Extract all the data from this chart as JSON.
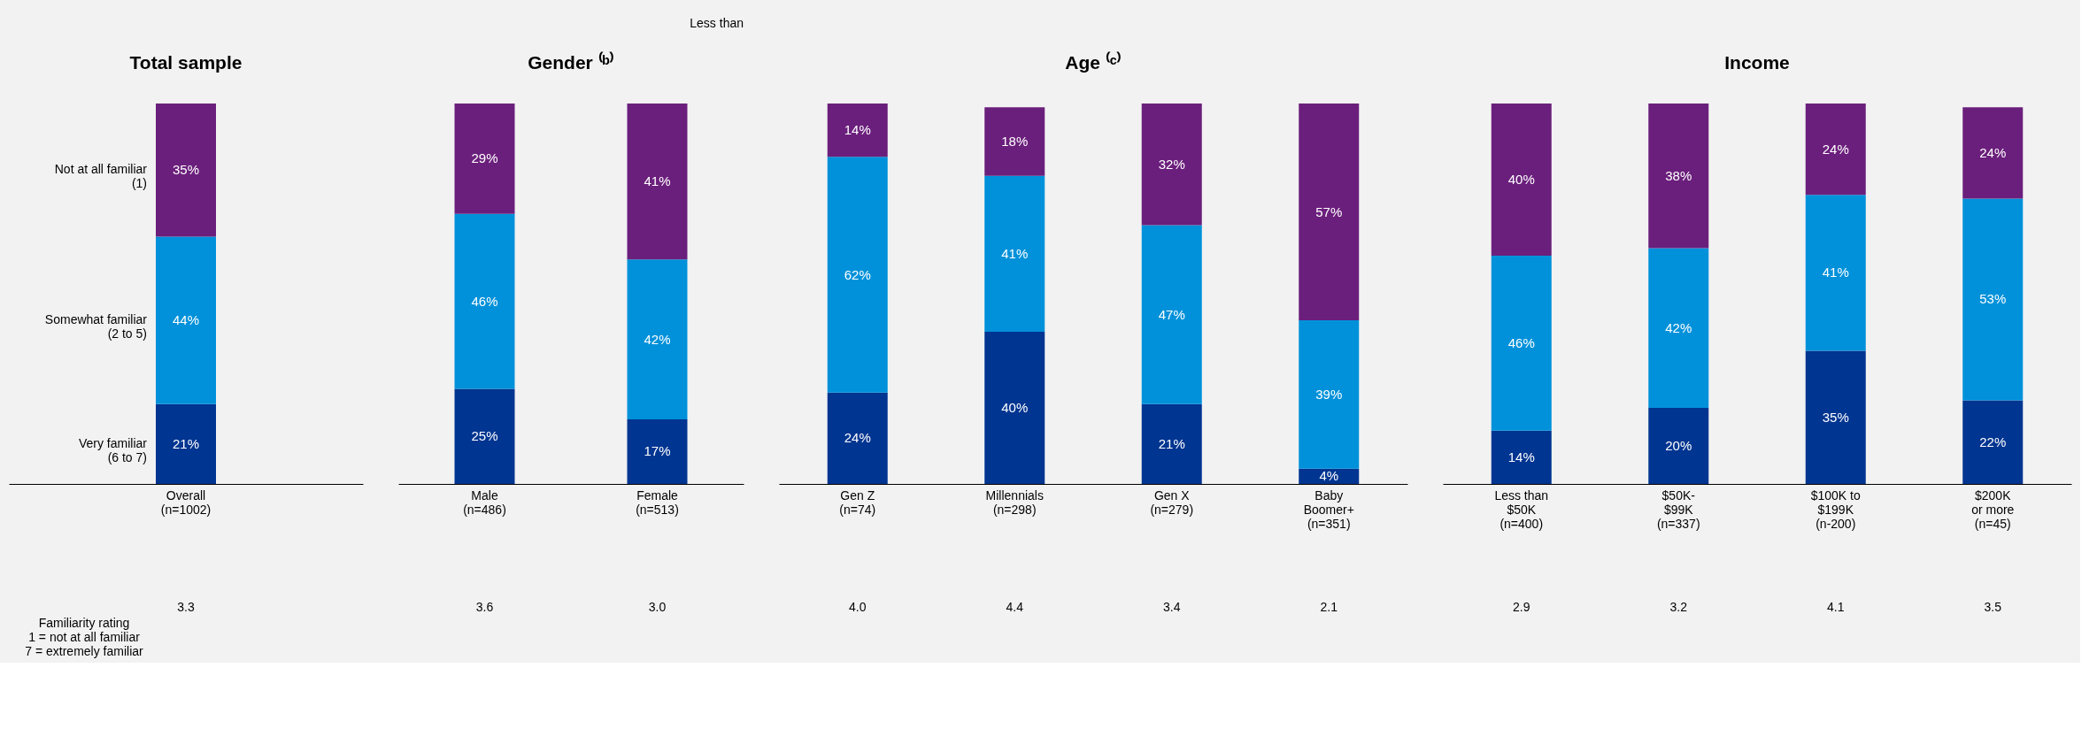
{
  "chart_data": [
    {
      "type": "bar",
      "title": "Total sample",
      "stacked": true,
      "ylim": [
        0,
        100
      ],
      "tick_labels": "x",
      "categories": [
        "Overall\n(n=1002)"
      ],
      "series": [
        {
          "name": "Very familiar\n(6 to 7)",
          "color": "#003591",
          "values": [
            21
          ],
          "value_labels": [
            "21%"
          ]
        },
        {
          "name": "Somewhat familiar\n(2 to 5)",
          "color": "#0091da",
          "values": [
            44
          ],
          "value_labels": [
            "44%"
          ]
        },
        {
          "name": "Not at all familiar\n(1)",
          "color": "#6b1f7c",
          "values": [
            35
          ],
          "value_labels": [
            "35%"
          ]
        }
      ],
      "annotations": [
        "Familiarity rating\n1 = not at all familiar\n7 = extremely familiar",
        "3.3"
      ]
    },
    {
      "type": "bar",
      "title": "Gender ⁽ᵇ⁾",
      "stacked": true,
      "ylim": [
        0,
        100
      ],
      "tick_labels": "x",
      "categories": [
        "Male\n(n=486)",
        "Female\n(n=513)"
      ],
      "series": [
        {
          "color": "#003591",
          "values": [
            25,
            17
          ],
          "value_labels": [
            "25%",
            "17%"
          ]
        },
        {
          "color": "#0091da",
          "values": [
            46,
            42
          ],
          "value_labels": [
            "46%",
            "42%"
          ]
        },
        {
          "color": "#6b1f7c",
          "values": [
            29,
            41
          ],
          "value_labels": [
            "29%",
            "41%"
          ]
        }
      ],
      "annotations": [
        "Less than",
        "3.6",
        "3.0"
      ]
    },
    {
      "type": "bar",
      "title": "Age ⁽ᶜ⁾",
      "stacked": true,
      "ylim": [
        0,
        100
      ],
      "tick_labels": "x",
      "categories": [
        "Gen Z\n(n=74)",
        "Millennials\n(n=298)",
        "Gen X\n(n=279)",
        "Baby\nBoomer+\n(n=351)"
      ],
      "series": [
        {
          "color": "#003591",
          "values": [
            24,
            40,
            21,
            4
          ],
          "value_labels": [
            "24%",
            "40%",
            "21%",
            "4%"
          ]
        },
        {
          "color": "#0091da",
          "values": [
            62,
            41,
            47,
            39
          ],
          "value_labels": [
            "62%",
            "41%",
            "47%",
            "39%"
          ]
        },
        {
          "color": "#6b1f7c",
          "values": [
            14,
            18,
            32,
            57
          ],
          "value_labels": [
            "14%",
            "18%",
            "32%",
            "57%"
          ]
        }
      ],
      "annotations": [
        "4.0",
        "4.4",
        "3.4",
        "2.1"
      ]
    },
    {
      "type": "bar",
      "title": "Income",
      "stacked": true,
      "ylim": [
        0,
        100
      ],
      "tick_labels": "x",
      "categories": [
        "Less than\n$50K\n(n=400)",
        "$50K-\n$99K\n(n=337)",
        "$100K to\n$199K\n(n-200)",
        "$200K\nor more\n(n=45)"
      ],
      "series": [
        {
          "color": "#003591",
          "values": [
            14,
            20,
            35,
            22
          ],
          "value_labels": [
            "14%",
            "20%",
            "35%",
            "22%"
          ]
        },
        {
          "color": "#0091da",
          "values": [
            46,
            42,
            41,
            53
          ],
          "value_labels": [
            "46%",
            "42%",
            "41%",
            "53%"
          ]
        },
        {
          "color": "#6b1f7c",
          "values": [
            40,
            38,
            24,
            24
          ],
          "value_labels": [
            "40%",
            "38%",
            "24%",
            "24%"
          ]
        }
      ],
      "annotations": [
        "2.9",
        "3.2",
        "4.1",
        "3.5"
      ]
    }
  ]
}
